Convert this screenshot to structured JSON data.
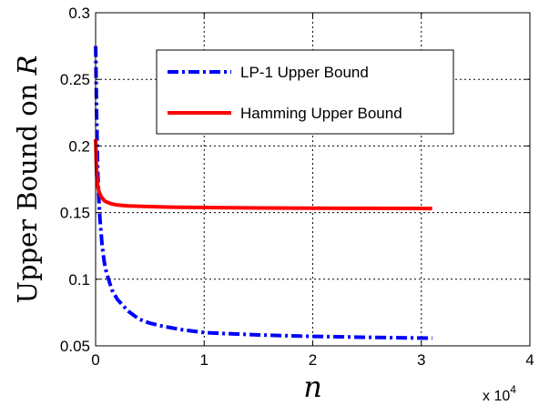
{
  "chart_data": {
    "type": "line",
    "xlabel": "n",
    "ylabel": "Upper Bound on R",
    "xlim": [
      0,
      40000
    ],
    "ylim": [
      0.05,
      0.3
    ],
    "x_scale_note": "x 10",
    "x_scale_exponent": "4",
    "xticks": [
      0,
      10000,
      20000,
      30000,
      40000
    ],
    "xtick_labels": [
      "0",
      "1",
      "2",
      "3",
      "4"
    ],
    "yticks": [
      0.05,
      0.1,
      0.15,
      0.2,
      0.25,
      0.3
    ],
    "ytick_labels": [
      "0.05",
      "0.1",
      "0.15",
      "0.2",
      "0.25",
      "0.3"
    ],
    "grid": true,
    "legend_position": "top-center",
    "series": [
      {
        "name": "LP-1 Upper Bound",
        "color": "#0000ff",
        "style": "dash-dot",
        "x": [
          10,
          100,
          200,
          300,
          400,
          600,
          800,
          1000,
          1500,
          2000,
          3000,
          4000,
          5000,
          6000,
          8000,
          10000,
          12000,
          15000,
          18000,
          20000,
          22000,
          25000,
          28000,
          31000
        ],
        "y": [
          0.275,
          0.22,
          0.18,
          0.16,
          0.145,
          0.125,
          0.113,
          0.105,
          0.092,
          0.085,
          0.076,
          0.07,
          0.067,
          0.065,
          0.062,
          0.06,
          0.0592,
          0.0582,
          0.0575,
          0.0571,
          0.0568,
          0.0564,
          0.0561,
          0.0558
        ]
      },
      {
        "name": "Hamming Upper Bound",
        "color": "#ff0000",
        "style": "solid",
        "x": [
          10,
          50,
          100,
          200,
          300,
          500,
          800,
          1000,
          1500,
          2000,
          3000,
          5000,
          7000,
          10000,
          15000,
          20000,
          25000,
          31000
        ],
        "y": [
          0.205,
          0.19,
          0.178,
          0.17,
          0.166,
          0.162,
          0.159,
          0.158,
          0.1565,
          0.1557,
          0.155,
          0.1545,
          0.1541,
          0.1538,
          0.1535,
          0.1533,
          0.1532,
          0.1531
        ]
      }
    ]
  }
}
